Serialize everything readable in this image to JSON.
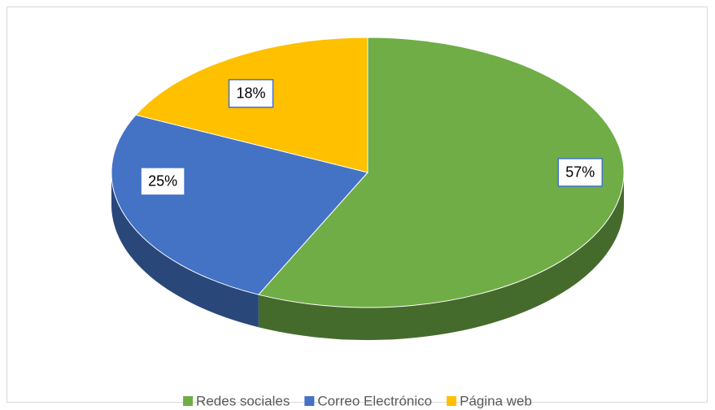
{
  "chart_data": {
    "type": "pie",
    "categories": [
      "Redes sociales",
      "Correo Electrónico",
      "Página web"
    ],
    "values": [
      57,
      25,
      18
    ],
    "value_labels": [
      "57%",
      "25%",
      "18%"
    ],
    "colors": [
      "#70ad47",
      "#4472c4",
      "#ffc000"
    ],
    "legend": "bottom"
  }
}
